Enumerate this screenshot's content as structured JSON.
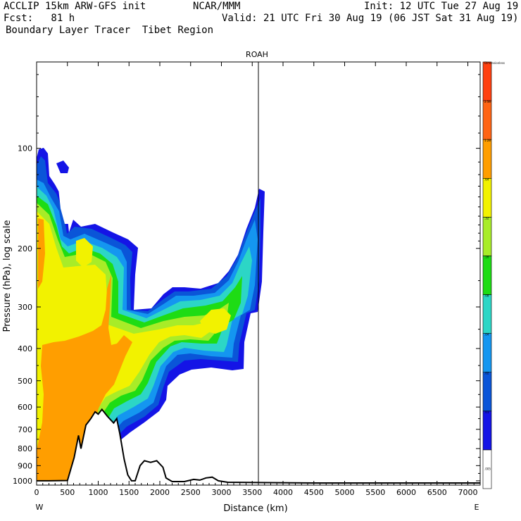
{
  "header": {
    "model": "ACCLIP 15km ARW-GFS init",
    "center": "NCAR/MMM",
    "init": "Init: 12 UTC Tue 27 Aug 19",
    "fcst": "Fcst:   81 h",
    "valid": "Valid: 21 UTC Fri 30 Aug 19 (06 JST Sat 31 Aug 19)",
    "field": "Boundary Layer Tracer  Tibet Region"
  },
  "chart_data": {
    "type": "contour-filled cross-section",
    "title": "ROAH",
    "xlabel": "Distance (km)",
    "ylabel": "Pressure (hPa), log scale",
    "x_ticks": [
      0,
      500,
      1000,
      1500,
      2000,
      2500,
      3000,
      3500,
      4000,
      4500,
      5000,
      5500,
      6000,
      6500,
      7000
    ],
    "xlim": [
      0,
      7200
    ],
    "y_ticks": [
      100,
      200,
      300,
      400,
      500,
      600,
      700,
      800,
      900,
      1000
    ],
    "ylim": [
      1030,
      55
    ],
    "y_scale": "log",
    "end_labels": {
      "left": "W",
      "right": "E"
    },
    "marker_x_km": 3600,
    "terrain_profile": [
      [
        0,
        1000
      ],
      [
        200,
        1000
      ],
      [
        500,
        998
      ],
      [
        610,
        850
      ],
      [
        680,
        730
      ],
      [
        720,
        800
      ],
      [
        800,
        680
      ],
      [
        880,
        650
      ],
      [
        950,
        620
      ],
      [
        1000,
        630
      ],
      [
        1060,
        610
      ],
      [
        1150,
        640
      ],
      [
        1250,
        670
      ],
      [
        1300,
        650
      ],
      [
        1350,
        720
      ],
      [
        1420,
        860
      ],
      [
        1480,
        960
      ],
      [
        1540,
        1000
      ],
      [
        1600,
        1000
      ],
      [
        1680,
        900
      ],
      [
        1750,
        870
      ],
      [
        1850,
        880
      ],
      [
        1950,
        870
      ],
      [
        2050,
        910
      ],
      [
        2100,
        980
      ],
      [
        2200,
        1005
      ],
      [
        2400,
        1005
      ],
      [
        2550,
        990
      ],
      [
        2650,
        995
      ],
      [
        2750,
        980
      ],
      [
        2850,
        975
      ],
      [
        2950,
        1000
      ],
      [
        3100,
        1010
      ],
      [
        3600,
        1012
      ],
      [
        4500,
        1015
      ],
      [
        7200,
        1015
      ]
    ],
    "colorbar": {
      "labels": [
        ".005",
        ".01",
        ".02",
        ".04",
        ".08",
        ".16",
        ".32",
        ".64",
        "1.28",
        "2.56",
        "Dimensionless"
      ],
      "colors": [
        "#ffffff",
        "#1414e6",
        "#0a55d8",
        "#1496f0",
        "#2cd6c6",
        "#1edc14",
        "#a8ec28",
        "#f2f200",
        "#ff9e00",
        "#ff6414",
        "#ff4010"
      ]
    }
  }
}
